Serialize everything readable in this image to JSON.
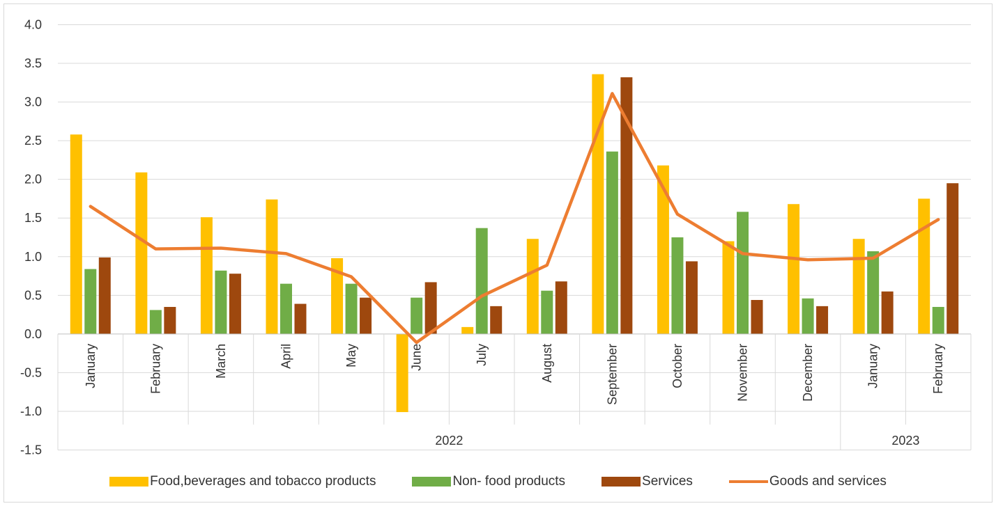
{
  "chart_data": {
    "type": "bar",
    "title": "",
    "xlabel": "",
    "ylabel": "",
    "ylim": [
      -1.5,
      4.0
    ],
    "yticks": [
      "4.0",
      "3.5",
      "3.0",
      "2.5",
      "2.0",
      "1.5",
      "1.0",
      "0.5",
      "0.0",
      "-0.5",
      "-1.0",
      "-1.5"
    ],
    "ytick_values": [
      4.0,
      3.5,
      3.0,
      2.5,
      2.0,
      1.5,
      1.0,
      0.5,
      0.0,
      -0.5,
      -1.0,
      -1.5
    ],
    "grid": true,
    "legend_position": "bottom",
    "categories": [
      "January",
      "February",
      "March",
      "April",
      "May",
      "June",
      "July",
      "August",
      "September",
      "October",
      "November",
      "December",
      "January",
      "February"
    ],
    "groups": [
      {
        "label": "2022",
        "count": 12
      },
      {
        "label": "2023",
        "count": 2
      }
    ],
    "series": [
      {
        "name": "Food,beverages and tobacco products",
        "type": "bar",
        "color": "#FFC000",
        "values": [
          2.58,
          2.09,
          1.51,
          1.74,
          0.98,
          -1.01,
          0.09,
          1.23,
          3.36,
          2.18,
          1.2,
          1.68,
          1.23,
          1.75
        ]
      },
      {
        "name": "Non- food products",
        "type": "bar",
        "color": "#70AD47",
        "values": [
          0.84,
          0.31,
          0.82,
          0.65,
          0.65,
          0.47,
          1.37,
          0.56,
          2.36,
          1.25,
          1.58,
          0.46,
          1.07,
          0.35
        ]
      },
      {
        "name": "Services",
        "type": "bar",
        "color": "#9E480E",
        "values": [
          0.99,
          0.35,
          0.78,
          0.39,
          0.47,
          0.67,
          0.36,
          0.68,
          3.32,
          0.94,
          0.44,
          0.36,
          0.55,
          1.95
        ]
      },
      {
        "name": "Goods and services",
        "type": "line",
        "color": "#ED7D31",
        "values": [
          1.65,
          1.1,
          1.11,
          1.04,
          0.74,
          -0.11,
          0.49,
          0.89,
          3.11,
          1.55,
          1.04,
          0.96,
          0.98,
          1.48
        ]
      }
    ]
  }
}
